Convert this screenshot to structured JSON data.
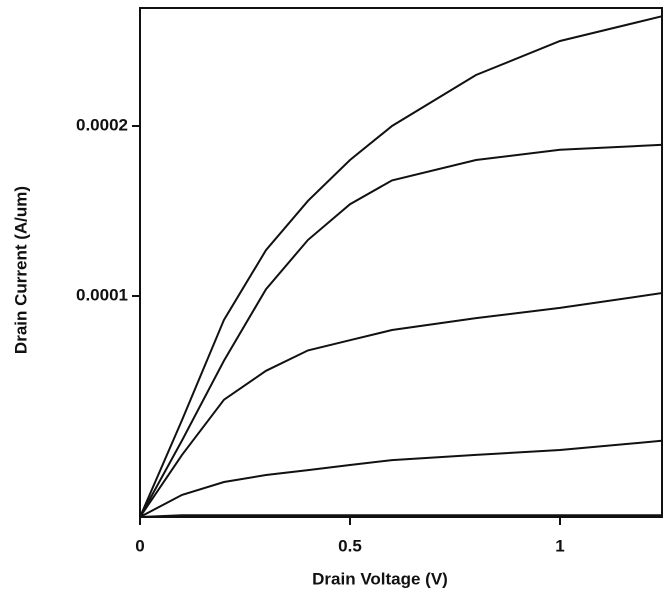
{
  "chart_data": {
    "type": "line",
    "xlabel": "Drain Voltage (V)",
    "ylabel": "Drain Current (A/um)",
    "x": [
      0,
      0.1,
      0.2,
      0.3,
      0.4,
      0.5,
      0.6,
      0.8,
      1.0,
      1.25
    ],
    "series": [
      {
        "color": "#111111",
        "values": [
          -3e-05,
          2.7e-05,
          8.6e-05,
          0.000127,
          0.000156,
          0.00018,
          0.0002,
          0.00023,
          0.00025,
          0.000265
        ]
      },
      {
        "color": "#111111",
        "values": [
          -3e-05,
          1.5e-05,
          6.2e-05,
          0.000104,
          0.000133,
          0.000154,
          0.000168,
          0.00018,
          0.000186,
          0.000189
        ]
      },
      {
        "color": "#111111",
        "values": [
          -3e-05,
          6.5e-06,
          3.9e-05,
          5.6e-05,
          6.8e-05,
          7.4e-05,
          8e-05,
          8.7e-05,
          9.3e-05,
          0.000102
        ]
      },
      {
        "color": "#111111",
        "values": [
          -3e-05,
          -1.7e-05,
          -9.4e-06,
          -5.3e-06,
          -2.4e-06,
          6e-07,
          3.5e-06,
          6.5e-06,
          9.4e-06,
          1.5e-05
        ]
      },
      {
        "color": "#111111",
        "values": [
          -3e-05,
          -2.9e-05,
          -2.9e-05,
          -2.9e-05,
          -2.9e-05,
          -2.9e-05,
          -2.9e-05,
          -2.9e-05,
          -2.9e-05,
          -2.9e-05
        ]
      }
    ],
    "xlim": [
      0,
      1.25
    ],
    "ylim": [
      -3e-05,
      0.00027
    ],
    "xticks": [
      0,
      0.5,
      1
    ],
    "yticks": [
      0.0001,
      0.0002
    ]
  }
}
